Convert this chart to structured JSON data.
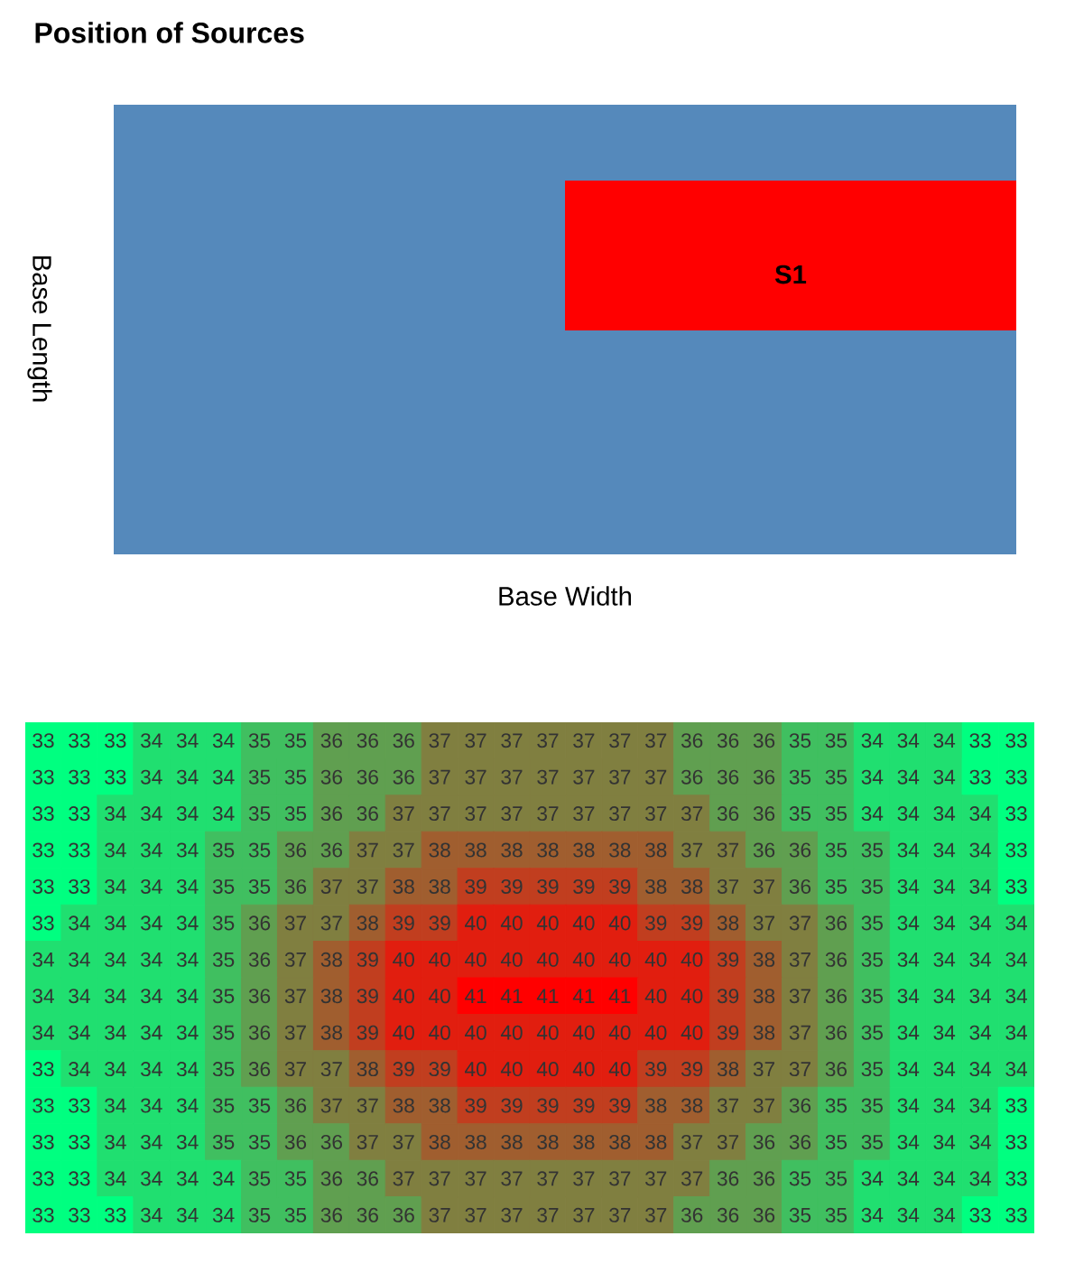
{
  "chart_data": [
    {
      "type": "other",
      "title": "Position of Sources",
      "xlabel": "Base Width",
      "ylabel": "Base Length",
      "annotations": [
        "S1"
      ]
    },
    {
      "type": "heatmap",
      "data_labels": true,
      "categories": [
        null,
        null,
        null,
        null,
        null,
        null,
        null,
        null,
        null,
        null,
        null,
        null,
        null,
        null,
        null,
        null,
        null,
        null,
        null,
        null,
        null,
        null,
        null,
        null,
        null,
        null,
        null,
        null
      ],
      "y_categories": [
        null,
        null,
        null,
        null,
        null,
        null,
        null,
        null,
        null,
        null,
        null,
        null,
        null,
        null
      ],
      "cells": [
        [
          33,
          33,
          33,
          34,
          34,
          34,
          35,
          35,
          36,
          36,
          36,
          37,
          37,
          37,
          37,
          37,
          37,
          37,
          36,
          36,
          36,
          35,
          35,
          34,
          34,
          34,
          33,
          33
        ],
        [
          33,
          33,
          33,
          34,
          34,
          34,
          35,
          35,
          36,
          36,
          36,
          37,
          37,
          37,
          37,
          37,
          37,
          37,
          36,
          36,
          36,
          35,
          35,
          34,
          34,
          34,
          33,
          33
        ],
        [
          33,
          33,
          34,
          34,
          34,
          34,
          35,
          35,
          36,
          36,
          37,
          37,
          37,
          37,
          37,
          37,
          37,
          37,
          37,
          36,
          36,
          35,
          35,
          34,
          34,
          34,
          34,
          33
        ],
        [
          33,
          33,
          34,
          34,
          34,
          35,
          35,
          36,
          36,
          37,
          37,
          38,
          38,
          38,
          38,
          38,
          38,
          38,
          37,
          37,
          36,
          36,
          35,
          35,
          34,
          34,
          34,
          33
        ],
        [
          33,
          33,
          34,
          34,
          34,
          35,
          35,
          36,
          37,
          37,
          38,
          38,
          39,
          39,
          39,
          39,
          39,
          38,
          38,
          37,
          37,
          36,
          35,
          35,
          34,
          34,
          34,
          33
        ],
        [
          33,
          34,
          34,
          34,
          34,
          35,
          36,
          37,
          37,
          38,
          39,
          39,
          40,
          40,
          40,
          40,
          40,
          39,
          39,
          38,
          37,
          37,
          36,
          35,
          34,
          34,
          34,
          34
        ],
        [
          34,
          34,
          34,
          34,
          34,
          35,
          36,
          37,
          38,
          39,
          40,
          40,
          40,
          40,
          40,
          40,
          40,
          40,
          40,
          39,
          38,
          37,
          36,
          35,
          34,
          34,
          34,
          34
        ],
        [
          34,
          34,
          34,
          34,
          34,
          35,
          36,
          37,
          38,
          39,
          40,
          40,
          41,
          41,
          41,
          41,
          41,
          40,
          40,
          39,
          38,
          37,
          36,
          35,
          34,
          34,
          34,
          34
        ],
        [
          34,
          34,
          34,
          34,
          34,
          35,
          36,
          37,
          38,
          39,
          40,
          40,
          40,
          40,
          40,
          40,
          40,
          40,
          40,
          39,
          38,
          37,
          36,
          35,
          34,
          34,
          34,
          34
        ],
        [
          33,
          34,
          34,
          34,
          34,
          35,
          36,
          37,
          37,
          38,
          39,
          39,
          40,
          40,
          40,
          40,
          40,
          39,
          39,
          38,
          37,
          37,
          36,
          35,
          34,
          34,
          34,
          34
        ],
        [
          33,
          33,
          34,
          34,
          34,
          35,
          35,
          36,
          37,
          37,
          38,
          38,
          39,
          39,
          39,
          39,
          39,
          38,
          38,
          37,
          37,
          36,
          35,
          35,
          34,
          34,
          34,
          33
        ],
        [
          33,
          33,
          34,
          34,
          34,
          35,
          35,
          36,
          36,
          37,
          37,
          38,
          38,
          38,
          38,
          38,
          38,
          38,
          37,
          37,
          36,
          36,
          35,
          35,
          34,
          34,
          34,
          33
        ],
        [
          33,
          33,
          34,
          34,
          34,
          34,
          35,
          35,
          36,
          36,
          37,
          37,
          37,
          37,
          37,
          37,
          37,
          37,
          37,
          36,
          36,
          35,
          35,
          34,
          34,
          34,
          34,
          33
        ],
        [
          33,
          33,
          33,
          34,
          34,
          34,
          35,
          35,
          36,
          36,
          36,
          37,
          37,
          37,
          37,
          37,
          37,
          37,
          36,
          36,
          36,
          35,
          35,
          34,
          34,
          34,
          33,
          33
        ]
      ]
    }
  ]
}
